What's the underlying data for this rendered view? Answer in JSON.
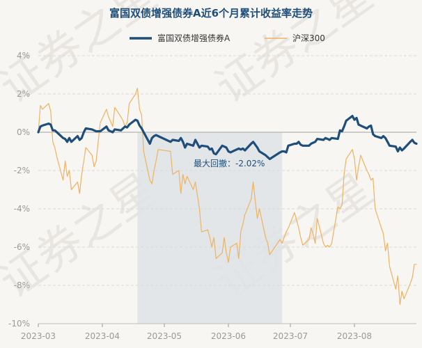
{
  "chart_data": {
    "type": "line",
    "title": "富国双债增强债券A近6个月累计收益率走势",
    "ylim": [
      -10,
      4
    ],
    "y_ticks": [
      "4%",
      "2%",
      "0%",
      "-2%",
      "-4%",
      "-6%",
      "-8%",
      "-10%"
    ],
    "x_ticks": [
      "2023-03",
      "2023-04",
      "2023-05",
      "2023-06",
      "2023-07",
      "2023-08"
    ],
    "legend_position": "top-center",
    "grid": "horizontal",
    "annotation": "最大回撤：-2.02%",
    "max_drawdown": {
      "start_date": "2023-04-18",
      "end_date": "2023-06-27"
    },
    "watermark": "证券之星",
    "series": [
      {
        "name": "富国双债增强债券A",
        "color": "#1e4e79",
        "points": [
          [
            "2023-03-01",
            0.0
          ],
          [
            "2023-03-02",
            0.3
          ],
          [
            "2023-03-03",
            0.35
          ],
          [
            "2023-03-06",
            0.45
          ],
          [
            "2023-03-07",
            0.4
          ],
          [
            "2023-03-08",
            0.1
          ],
          [
            "2023-03-09",
            0.1
          ],
          [
            "2023-03-10",
            0.0
          ],
          [
            "2023-03-13",
            -0.3
          ],
          [
            "2023-03-14",
            -0.35
          ],
          [
            "2023-03-15",
            -0.5
          ],
          [
            "2023-03-16",
            -0.3
          ],
          [
            "2023-03-17",
            -0.5
          ],
          [
            "2023-03-20",
            -0.2
          ],
          [
            "2023-03-21",
            -0.4
          ],
          [
            "2023-03-22",
            -0.3
          ],
          [
            "2023-03-23",
            0.0
          ],
          [
            "2023-03-24",
            0.2
          ],
          [
            "2023-03-27",
            0.15
          ],
          [
            "2023-03-28",
            0.1
          ],
          [
            "2023-03-29",
            0.05
          ],
          [
            "2023-03-30",
            0.05
          ],
          [
            "2023-03-31",
            0.05
          ],
          [
            "2023-04-03",
            0.3
          ],
          [
            "2023-04-04",
            0.1
          ],
          [
            "2023-04-06",
            0.0
          ],
          [
            "2023-04-07",
            0.15
          ],
          [
            "2023-04-10",
            0.1
          ],
          [
            "2023-04-11",
            0.2
          ],
          [
            "2023-04-12",
            0.3
          ],
          [
            "2023-04-13",
            0.25
          ],
          [
            "2023-04-14",
            0.4
          ],
          [
            "2023-04-17",
            0.65
          ],
          [
            "2023-04-18",
            0.6
          ],
          [
            "2023-04-19",
            0.35
          ],
          [
            "2023-04-20",
            0.2
          ],
          [
            "2023-04-21",
            0.0
          ],
          [
            "2023-04-24",
            -0.6
          ],
          [
            "2023-04-25",
            -0.3
          ],
          [
            "2023-04-26",
            -0.2
          ],
          [
            "2023-04-27",
            -0.15
          ],
          [
            "2023-04-28",
            -0.2
          ],
          [
            "2023-05-04",
            -0.5
          ],
          [
            "2023-05-05",
            -0.4
          ],
          [
            "2023-05-08",
            -0.45
          ],
          [
            "2023-05-09",
            -0.3
          ],
          [
            "2023-05-10",
            -0.5
          ],
          [
            "2023-05-11",
            -0.8
          ],
          [
            "2023-05-12",
            -0.6
          ],
          [
            "2023-05-15",
            -0.7
          ],
          [
            "2023-05-16",
            -0.4
          ],
          [
            "2023-05-17",
            -0.6
          ],
          [
            "2023-05-18",
            -0.8
          ],
          [
            "2023-05-19",
            -0.7
          ],
          [
            "2023-05-22",
            -0.75
          ],
          [
            "2023-05-23",
            -0.9
          ],
          [
            "2023-05-24",
            -0.85
          ],
          [
            "2023-05-25",
            -1.1
          ],
          [
            "2023-05-26",
            -1.15
          ],
          [
            "2023-05-29",
            -0.7
          ],
          [
            "2023-05-30",
            -0.75
          ],
          [
            "2023-05-31",
            -0.8
          ],
          [
            "2023-06-01",
            -1.0
          ],
          [
            "2023-06-02",
            -1.05
          ],
          [
            "2023-06-05",
            -0.9
          ],
          [
            "2023-06-06",
            -0.85
          ],
          [
            "2023-06-07",
            -0.9
          ],
          [
            "2023-06-08",
            -0.85
          ],
          [
            "2023-06-09",
            -0.95
          ],
          [
            "2023-06-12",
            -0.6
          ],
          [
            "2023-06-13",
            -0.5
          ],
          [
            "2023-06-14",
            -0.65
          ],
          [
            "2023-06-15",
            -0.8
          ],
          [
            "2023-06-16",
            -1.0
          ],
          [
            "2023-06-19",
            -1.2
          ],
          [
            "2023-06-20",
            -1.3
          ],
          [
            "2023-06-21",
            -1.4
          ],
          [
            "2023-06-26",
            -1.05
          ],
          [
            "2023-06-27",
            -1.0
          ],
          [
            "2023-06-28",
            -1.0
          ],
          [
            "2023-06-29",
            -1.05
          ],
          [
            "2023-06-30",
            -0.7
          ],
          [
            "2023-07-03",
            -0.6
          ],
          [
            "2023-07-04",
            -0.6
          ],
          [
            "2023-07-05",
            -0.5
          ],
          [
            "2023-07-06",
            -0.65
          ],
          [
            "2023-07-07",
            -0.7
          ],
          [
            "2023-07-10",
            -0.7
          ],
          [
            "2023-07-11",
            -0.6
          ],
          [
            "2023-07-12",
            -0.55
          ],
          [
            "2023-07-13",
            -0.5
          ],
          [
            "2023-07-14",
            -0.35
          ],
          [
            "2023-07-17",
            -0.4
          ],
          [
            "2023-07-18",
            -0.3
          ],
          [
            "2023-07-19",
            -0.35
          ],
          [
            "2023-07-20",
            -0.4
          ],
          [
            "2023-07-21",
            -0.3
          ],
          [
            "2023-07-24",
            -0.35
          ],
          [
            "2023-07-25",
            0.1
          ],
          [
            "2023-07-26",
            0.05
          ],
          [
            "2023-07-27",
            0.3
          ],
          [
            "2023-07-28",
            0.6
          ],
          [
            "2023-07-31",
            0.85
          ],
          [
            "2023-08-01",
            0.65
          ],
          [
            "2023-08-02",
            0.75
          ],
          [
            "2023-08-03",
            0.4
          ],
          [
            "2023-08-04",
            0.35
          ],
          [
            "2023-08-07",
            0.2
          ],
          [
            "2023-08-08",
            0.3
          ],
          [
            "2023-08-09",
            0.35
          ],
          [
            "2023-08-10",
            -0.1
          ],
          [
            "2023-08-11",
            -0.2
          ],
          [
            "2023-08-14",
            -0.3
          ],
          [
            "2023-08-15",
            -0.2
          ],
          [
            "2023-08-16",
            -0.3
          ],
          [
            "2023-08-17",
            -0.5
          ],
          [
            "2023-08-18",
            -0.7
          ],
          [
            "2023-08-21",
            -0.75
          ],
          [
            "2023-08-22",
            -1.0
          ],
          [
            "2023-08-23",
            -0.8
          ],
          [
            "2023-08-24",
            -0.95
          ],
          [
            "2023-08-25",
            -0.85
          ],
          [
            "2023-08-28",
            -0.5
          ],
          [
            "2023-08-29",
            -0.4
          ],
          [
            "2023-08-30",
            -0.55
          ],
          [
            "2023-08-31",
            -0.6
          ]
        ]
      },
      {
        "name": "沪深300",
        "color": "#f0b25f",
        "points": [
          [
            "2023-03-01",
            0.0
          ],
          [
            "2023-03-02",
            1.4
          ],
          [
            "2023-03-03",
            1.2
          ],
          [
            "2023-03-06",
            1.5
          ],
          [
            "2023-03-07",
            1.1
          ],
          [
            "2023-03-08",
            -0.5
          ],
          [
            "2023-03-09",
            -0.8
          ],
          [
            "2023-03-10",
            -1.3
          ],
          [
            "2023-03-13",
            -2.5
          ],
          [
            "2023-03-14",
            -1.5
          ],
          [
            "2023-03-15",
            -2.3
          ],
          [
            "2023-03-16",
            -2.0
          ],
          [
            "2023-03-17",
            -3.0
          ],
          [
            "2023-03-20",
            -2.6
          ],
          [
            "2023-03-21",
            -3.2
          ],
          [
            "2023-03-22",
            -2.2
          ],
          [
            "2023-03-23",
            -1.5
          ],
          [
            "2023-03-24",
            -0.8
          ],
          [
            "2023-03-27",
            -1.2
          ],
          [
            "2023-03-28",
            -1.8
          ],
          [
            "2023-03-29",
            -1.5
          ],
          [
            "2023-03-30",
            -0.5
          ],
          [
            "2023-03-31",
            0.5
          ],
          [
            "2023-04-03",
            1.2
          ],
          [
            "2023-04-04",
            0.8
          ],
          [
            "2023-04-06",
            0.3
          ],
          [
            "2023-04-07",
            1.3
          ],
          [
            "2023-04-10",
            0.8
          ],
          [
            "2023-04-11",
            0.6
          ],
          [
            "2023-04-12",
            0.3
          ],
          [
            "2023-04-13",
            0.5
          ],
          [
            "2023-04-14",
            1.5
          ],
          [
            "2023-04-17",
            2.0
          ],
          [
            "2023-04-18",
            2.3
          ],
          [
            "2023-04-19",
            1.2
          ],
          [
            "2023-04-20",
            0.9
          ],
          [
            "2023-04-21",
            -1.0
          ],
          [
            "2023-04-24",
            -2.5
          ],
          [
            "2023-04-25",
            -2.7
          ],
          [
            "2023-04-26",
            -2.0
          ],
          [
            "2023-04-27",
            -1.5
          ],
          [
            "2023-04-28",
            -0.9
          ],
          [
            "2023-05-04",
            -1.0
          ],
          [
            "2023-05-05",
            -2.2
          ],
          [
            "2023-05-08",
            -2.0
          ],
          [
            "2023-05-09",
            -3.2
          ],
          [
            "2023-05-10",
            -2.2
          ],
          [
            "2023-05-11",
            -2.7
          ],
          [
            "2023-05-12",
            -2.3
          ],
          [
            "2023-05-15",
            -3.0
          ],
          [
            "2023-05-16",
            -2.6
          ],
          [
            "2023-05-17",
            -3.3
          ],
          [
            "2023-05-18",
            -4.0
          ],
          [
            "2023-05-19",
            -5.2
          ],
          [
            "2023-05-22",
            -5.1
          ],
          [
            "2023-05-23",
            -5.5
          ],
          [
            "2023-05-24",
            -6.0
          ],
          [
            "2023-05-25",
            -5.5
          ],
          [
            "2023-05-26",
            -6.6
          ],
          [
            "2023-05-29",
            -6.3
          ],
          [
            "2023-05-30",
            -5.5
          ],
          [
            "2023-05-31",
            -6.3
          ],
          [
            "2023-06-01",
            -6.8
          ],
          [
            "2023-06-02",
            -6.0
          ],
          [
            "2023-06-05",
            -5.8
          ],
          [
            "2023-06-06",
            -6.6
          ],
          [
            "2023-06-07",
            -5.2
          ],
          [
            "2023-06-08",
            -4.8
          ],
          [
            "2023-06-09",
            -4.3
          ],
          [
            "2023-06-12",
            -3.5
          ],
          [
            "2023-06-13",
            -2.6
          ],
          [
            "2023-06-14",
            -3.6
          ],
          [
            "2023-06-15",
            -4.5
          ],
          [
            "2023-06-16",
            -4.0
          ],
          [
            "2023-06-19",
            -5.5
          ],
          [
            "2023-06-20",
            -5.8
          ],
          [
            "2023-06-21",
            -6.4
          ],
          [
            "2023-06-26",
            -5.6
          ],
          [
            "2023-06-27",
            -5.8
          ],
          [
            "2023-06-28",
            -5.5
          ],
          [
            "2023-06-29",
            -5.2
          ],
          [
            "2023-06-30",
            -5.0
          ],
          [
            "2023-07-03",
            -4.2
          ],
          [
            "2023-07-04",
            -4.6
          ],
          [
            "2023-07-05",
            -5.0
          ],
          [
            "2023-07-06",
            -5.5
          ],
          [
            "2023-07-07",
            -5.9
          ],
          [
            "2023-07-10",
            -5.6
          ],
          [
            "2023-07-11",
            -5.0
          ],
          [
            "2023-07-12",
            -5.3
          ],
          [
            "2023-07-13",
            -5.8
          ],
          [
            "2023-07-14",
            -4.5
          ],
          [
            "2023-07-17",
            -5.8
          ],
          [
            "2023-07-18",
            -6.0
          ],
          [
            "2023-07-19",
            -5.9
          ],
          [
            "2023-07-20",
            -6.0
          ],
          [
            "2023-07-21",
            -5.8
          ],
          [
            "2023-07-24",
            -3.9
          ],
          [
            "2023-07-25",
            -4.0
          ],
          [
            "2023-07-26",
            -3.8
          ],
          [
            "2023-07-27",
            -2.2
          ],
          [
            "2023-07-28",
            -1.4
          ],
          [
            "2023-07-31",
            -0.9
          ],
          [
            "2023-08-01",
            -1.4
          ],
          [
            "2023-08-02",
            -2.5
          ],
          [
            "2023-08-03",
            -1.8
          ],
          [
            "2023-08-04",
            -1.2
          ],
          [
            "2023-08-07",
            -2.0
          ],
          [
            "2023-08-08",
            -2.2
          ],
          [
            "2023-08-09",
            -2.5
          ],
          [
            "2023-08-10",
            -2.4
          ],
          [
            "2023-08-11",
            -4.0
          ],
          [
            "2023-08-14",
            -5.0
          ],
          [
            "2023-08-15",
            -5.3
          ],
          [
            "2023-08-16",
            -6.2
          ],
          [
            "2023-08-17",
            -5.8
          ],
          [
            "2023-08-18",
            -7.0
          ],
          [
            "2023-08-21",
            -8.2
          ],
          [
            "2023-08-22",
            -7.5
          ],
          [
            "2023-08-23",
            -9.0
          ],
          [
            "2023-08-24",
            -8.3
          ],
          [
            "2023-08-25",
            -8.7
          ],
          [
            "2023-08-28",
            -7.9
          ],
          [
            "2023-08-29",
            -7.6
          ],
          [
            "2023-08-30",
            -6.9
          ],
          [
            "2023-08-31",
            -6.9
          ]
        ]
      }
    ]
  }
}
